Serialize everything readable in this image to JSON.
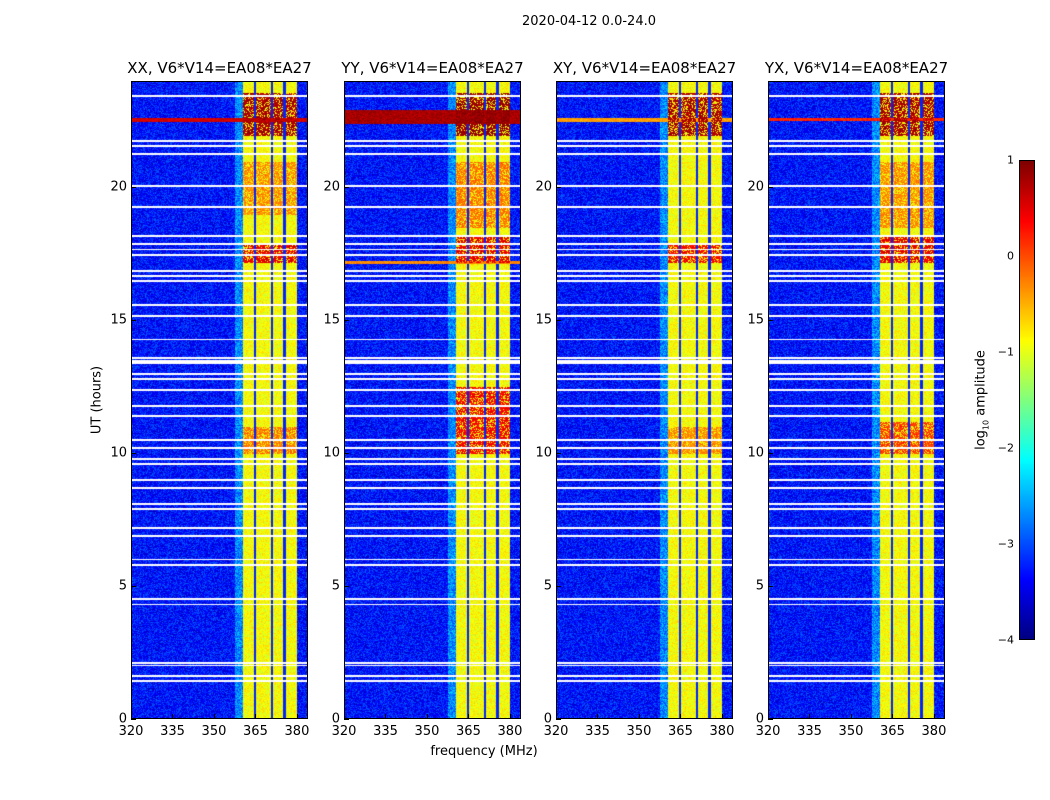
{
  "chart_data": {
    "type": "heatmap",
    "title": "2020-04-12 0.0-24.0",
    "xlabel": "frequency (MHz)",
    "ylabel": "UT (hours)",
    "xlim": [
      320,
      384
    ],
    "ylim": [
      0,
      24
    ],
    "xticks": [
      "320",
      "335",
      "350",
      "365",
      "380"
    ],
    "xtick_values": [
      320,
      335,
      350,
      365,
      380
    ],
    "yticks": [
      "0",
      "5",
      "10",
      "15",
      "20"
    ],
    "ytick_values": [
      0,
      5,
      10,
      15,
      20
    ],
    "colorbar": {
      "label": "log₁₀ amplitude",
      "label_main": "log",
      "label_sub": "10",
      "label_rest": " amplitude",
      "range": [
        -4,
        1
      ],
      "colormap": "jet",
      "ticks": [
        "1",
        "0",
        "−1",
        "−2",
        "−3",
        "−4"
      ],
      "tick_values": [
        1,
        0,
        -1,
        -2,
        -3,
        -4
      ]
    },
    "background_log_amp": -3.3,
    "rfi_band_mhz": [
      360.5,
      380.2
    ],
    "band_log_amp": -0.9,
    "band_gaps_mhz": [
      364.8,
      371.0,
      375.6
    ],
    "flagged_hours": [
      23.5,
      21.8,
      21.6,
      21.3,
      20.1,
      19.3,
      18.2,
      17.9,
      17.7,
      17.5,
      16.9,
      16.7,
      16.5,
      15.6,
      15.2,
      14.3,
      13.6,
      13.5,
      13.4,
      13.0,
      12.8,
      12.4,
      11.8,
      11.4,
      10.5,
      10.2,
      9.8,
      9.6,
      9.0,
      8.7,
      8.1,
      7.9,
      7.2,
      6.9,
      6.0,
      5.8,
      4.5,
      4.3,
      2.1,
      2.0,
      1.6,
      1.4
    ],
    "panels": [
      {
        "title": "XX, V6*V14=EA08*EA27",
        "strong_rows": [
          {
            "hour": 22.6,
            "width": 0.15,
            "log_amp": 0.6,
            "full": true
          }
        ],
        "band_hot_hours": [
          [
            22,
            23.6,
            0.8
          ],
          [
            17.2,
            17.9,
            0.5
          ],
          [
            19,
            21,
            -0.3
          ],
          [
            10,
            11,
            -0.2
          ]
        ]
      },
      {
        "title": "YY, V6*V14=EA08*EA27",
        "strong_rows": [
          {
            "hour": 22.7,
            "width": 0.5,
            "log_amp": 0.8,
            "full": true
          },
          {
            "hour": 17.2,
            "width": 0.1,
            "log_amp": -0.3,
            "full": true
          }
        ],
        "band_hot_hours": [
          [
            22,
            23.6,
            0.9
          ],
          [
            17.2,
            18.2,
            0.5
          ],
          [
            10,
            12.5,
            0.4
          ],
          [
            18.5,
            21,
            -0.2
          ]
        ]
      },
      {
        "title": "XY, V6*V14=EA08*EA27",
        "strong_rows": [
          {
            "hour": 22.6,
            "width": 0.15,
            "log_amp": -0.4,
            "full": true
          }
        ],
        "band_hot_hours": [
          [
            22,
            23.6,
            0.8
          ],
          [
            17.2,
            17.9,
            0.4
          ],
          [
            10,
            11,
            -0.3
          ]
        ]
      },
      {
        "title": "YX, V6*V14=EA08*EA27",
        "strong_rows": [
          {
            "hour": 22.6,
            "width": 0.12,
            "log_amp": 0.2,
            "full": true
          }
        ],
        "band_hot_hours": [
          [
            22,
            23.6,
            0.8
          ],
          [
            17.2,
            18.2,
            0.5
          ],
          [
            10,
            11.2,
            0.1
          ],
          [
            18.5,
            21,
            -0.3
          ]
        ]
      }
    ]
  }
}
